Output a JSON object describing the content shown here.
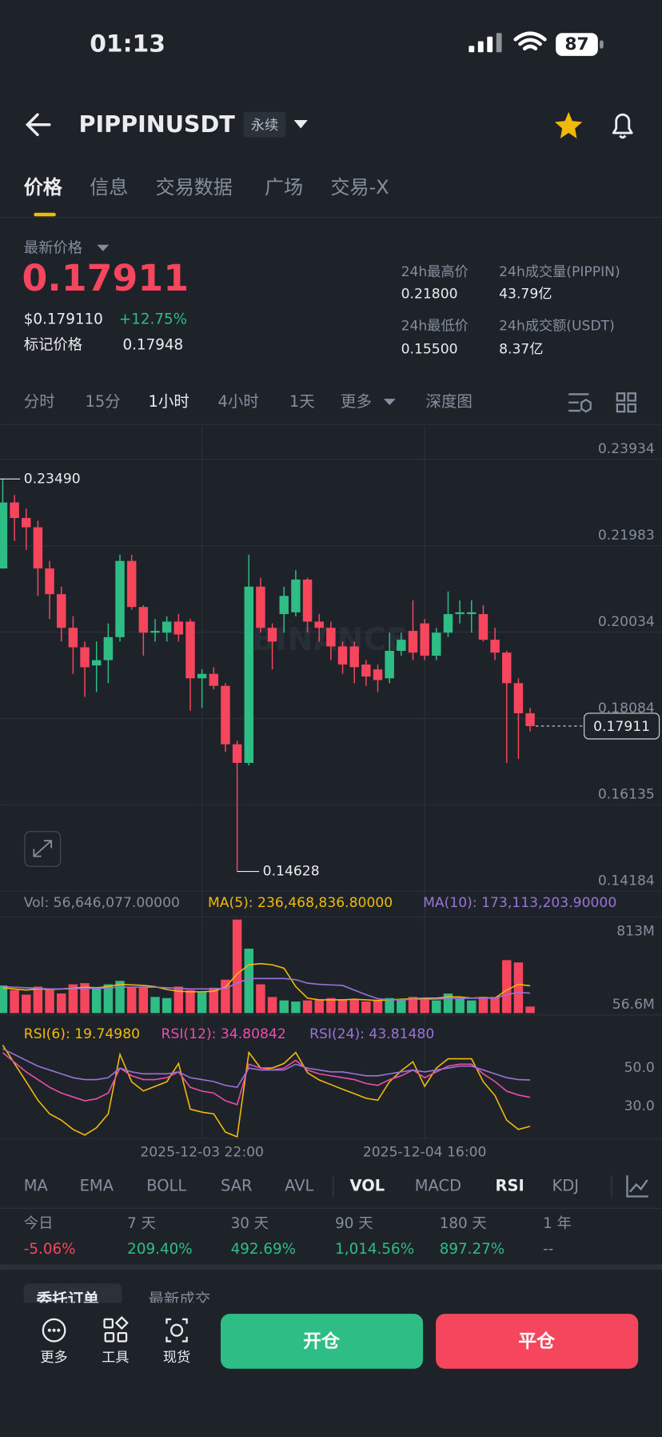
{
  "status_bar": {
    "time": "01:13",
    "battery": "87"
  },
  "header": {
    "symbol": "PIPPINUSDT",
    "contract_type": "永续"
  },
  "tabs": [
    "价格",
    "信息",
    "交易数据",
    "广场",
    "交易-X"
  ],
  "price_info": {
    "latest_label": "最新价格",
    "last_price": "0.17911",
    "usd_price": "$0.179110",
    "change": "+12.75%",
    "mark_label": "标记价格",
    "mark_price": "0.17948",
    "stats": [
      {
        "label": "24h最高价",
        "value": "0.21800"
      },
      {
        "label": "24h成交量(PIPPIN)",
        "value": "43.79亿"
      },
      {
        "label": "24h最低价",
        "value": "0.15500"
      },
      {
        "label": "24h成交额(USDT)",
        "value": "8.37亿"
      }
    ]
  },
  "timeframes": [
    "分时",
    "15分",
    "1小时",
    "4小时",
    "1天",
    "更多",
    "深度图"
  ],
  "chart_data": {
    "type": "candlestick",
    "x": [
      null,
      null,
      null,
      null,
      null,
      null,
      null,
      null,
      null,
      null,
      null,
      null,
      null,
      null,
      null,
      null,
      null,
      "2025-12-03 22:00",
      null,
      null,
      null,
      null,
      null,
      null,
      null,
      null,
      null,
      null,
      null,
      null,
      null,
      null,
      null,
      null,
      null,
      null,
      "2025-12-04 16:00",
      null,
      null,
      null,
      null,
      null,
      null,
      null,
      null,
      null
    ],
    "open": [
      0.2147,
      0.2296,
      0.2261,
      0.224,
      0.2147,
      0.2089,
      0.2013,
      0.1969,
      0.1928,
      0.194,
      0.1992,
      0.2164,
      0.206,
      0.2002,
      0.2002,
      0.2027,
      0.2027,
      0.1899,
      0.1909,
      0.1882,
      0.175,
      0.1708,
      0.2106,
      0.2013,
      0.2044,
      0.2048,
      0.2122,
      0.2027,
      0.2013,
      0.1971,
      0.1971,
      0.193,
      0.1919,
      0.1899,
      0.1961,
      0.2006,
      0.2023,
      0.195,
      0.2002,
      0.2044,
      0.2044,
      0.2044,
      0.1986,
      0.1957,
      0.1888,
      0.182
    ],
    "high": [
      0.2349,
      0.2313,
      0.2282,
      0.2255,
      0.2164,
      0.2106,
      0.2039,
      0.1982,
      0.1982,
      0.2023,
      0.2178,
      0.2178,
      0.2064,
      0.2033,
      0.2039,
      0.2044,
      0.2033,
      0.1919,
      0.1924,
      0.1888,
      0.1758,
      0.2178,
      0.2126,
      0.2023,
      0.2106,
      0.2143,
      0.2126,
      0.2044,
      0.2027,
      0.1982,
      0.1982,
      0.194,
      0.193,
      0.2002,
      0.2002,
      0.2075,
      0.2033,
      0.2013,
      0.2095,
      0.2075,
      0.2075,
      0.2064,
      0.2013,
      0.1961,
      0.1899,
      0.1832
    ],
    "low": [
      0.2147,
      0.2209,
      0.2189,
      0.2085,
      0.2033,
      0.1982,
      0.1909,
      0.1857,
      0.1868,
      0.1888,
      0.1982,
      0.2054,
      0.195,
      0.1982,
      0.1982,
      0.1982,
      0.1826,
      0.1832,
      0.1874,
      0.1733,
      0.14628,
      0.1702,
      0.2002,
      0.1919,
      0.2002,
      0.2039,
      0.2002,
      0.1982,
      0.194,
      0.1909,
      0.1888,
      0.1882,
      0.1868,
      0.1888,
      0.195,
      0.194,
      0.194,
      0.194,
      0.1992,
      0.2023,
      0.2002,
      0.1982,
      0.194,
      0.1708,
      0.1717,
      0.1779
    ],
    "close": [
      0.2296,
      0.2261,
      0.224,
      0.2147,
      0.2089,
      0.2013,
      0.1969,
      0.1924,
      0.194,
      0.1992,
      0.2164,
      0.206,
      0.2002,
      0.2006,
      0.2027,
      0.1998,
      0.1899,
      0.1909,
      0.1882,
      0.175,
      0.1708,
      0.2106,
      0.2013,
      0.1982,
      0.2085,
      0.2122,
      0.2027,
      0.2013,
      0.1971,
      0.193,
      0.1924,
      0.1903,
      0.1895,
      0.1961,
      0.1986,
      0.1957,
      0.195,
      0.2002,
      0.2044,
      0.2048,
      0.2048,
      0.1986,
      0.1957,
      0.1888,
      0.182,
      0.17911
    ],
    "up_color": "#2ebd85",
    "down_color": "#f6465d",
    "ylim": [
      0.14184,
      0.2468
    ],
    "yticks": [
      0.23934,
      0.21983,
      0.20034,
      0.18084,
      0.16135,
      0.14184
    ],
    "grid": true,
    "high_label": "0.23490",
    "low_label": "0.14628",
    "watermark": "BINANCE",
    "volume": {
      "legend": "Vol: 56,646,077.00000",
      "values": [
        240000000,
        200000000,
        160000000,
        230000000,
        200000000,
        170000000,
        250000000,
        260000000,
        220000000,
        250000000,
        280000000,
        230000000,
        230000000,
        140000000,
        130000000,
        230000000,
        200000000,
        180000000,
        220000000,
        290000000,
        813000000,
        560000000,
        250000000,
        140000000,
        110000000,
        100000000,
        110000000,
        120000000,
        130000000,
        120000000,
        120000000,
        100000000,
        110000000,
        130000000,
        120000000,
        140000000,
        130000000,
        110000000,
        170000000,
        130000000,
        110000000,
        140000000,
        140000000,
        460000000,
        440000000,
        56646077
      ],
      "series": [
        {
          "legend": "MA(5): 236,468,836.80000",
          "color": "#f0b90b",
          "values": [
            220000000,
            210000000,
            200000000,
            210000000,
            205000000,
            210000000,
            215000000,
            225000000,
            220000000,
            230000000,
            250000000,
            245000000,
            240000000,
            230000000,
            205000000,
            190000000,
            185000000,
            185000000,
            190000000,
            225000000,
            340000000,
            420000000,
            430000000,
            420000000,
            390000000,
            230000000,
            130000000,
            115000000,
            115000000,
            115000000,
            120000000,
            115000000,
            110000000,
            115000000,
            120000000,
            125000000,
            130000000,
            130000000,
            140000000,
            140000000,
            130000000,
            135000000,
            130000000,
            200000000,
            250000000,
            236468836.8
          ]
        },
        {
          "legend": "MA(10): 173,113,203.90000",
          "color": "#9b72d8",
          "values": [
            230000000,
            225000000,
            220000000,
            215000000,
            210000000,
            210000000,
            212000000,
            215000000,
            215000000,
            218000000,
            225000000,
            225000000,
            225000000,
            225000000,
            220000000,
            215000000,
            210000000,
            210000000,
            210000000,
            215000000,
            260000000,
            300000000,
            300000000,
            300000000,
            300000000,
            290000000,
            260000000,
            250000000,
            245000000,
            240000000,
            200000000,
            160000000,
            125000000,
            115000000,
            115000000,
            120000000,
            120000000,
            122000000,
            125000000,
            128000000,
            130000000,
            130000000,
            130000000,
            160000000,
            180000000,
            173113203.9
          ]
        }
      ],
      "ylim": [
        0,
        813000000
      ],
      "yticks": [
        {
          "value": 813000000,
          "label": "813M"
        },
        {
          "value": 56646077,
          "label": "56.6M"
        }
      ]
    },
    "rsi": {
      "series": [
        {
          "legend": "RSI(6): 19.74980",
          "color": "#f0b90b",
          "values": [
            61.9,
            52.4,
            42.9,
            33.3,
            26.2,
            22.9,
            18.1,
            15.2,
            19.0,
            26.2,
            57.1,
            42.9,
            38.1,
            40.5,
            42.9,
            52.4,
            28.6,
            27.1,
            26.2,
            16.7,
            14.3,
            58.1,
            50,
            50,
            52.4,
            58.1,
            47.6,
            43.8,
            41.4,
            39.0,
            36.7,
            34.3,
            33.3,
            42.9,
            48.6,
            53.3,
            40.5,
            50,
            54.8,
            54.8,
            54.8,
            42.9,
            35.7,
            22.9,
            18.1,
            19.7498
          ]
        },
        {
          "legend": "RSI(12): 34.80842",
          "color": "#e94fa9",
          "values": [
            58,
            53,
            48,
            44,
            40,
            37,
            35,
            33,
            34,
            37,
            50,
            46,
            44,
            44,
            45,
            48,
            40,
            38,
            37,
            33,
            31,
            52,
            50,
            49,
            50,
            54,
            49,
            47,
            46,
            45,
            44,
            42,
            41,
            44,
            46,
            49,
            45,
            48,
            51,
            52,
            52,
            47,
            43,
            38,
            36,
            34.80842
          ]
        },
        {
          "legend": "RSI(24): 43.81480",
          "color": "#9b72d8",
          "values": [
            60,
            57,
            54,
            51,
            49,
            47,
            45,
            44,
            44,
            45,
            50,
            48,
            47,
            47,
            47,
            48,
            45,
            44,
            43,
            41,
            40,
            50,
            49,
            49,
            49,
            52,
            50,
            49,
            48,
            48,
            47,
            46,
            46,
            47,
            48,
            49,
            48,
            49,
            50,
            51,
            51,
            49,
            47,
            45,
            44,
            43.8148
          ]
        }
      ],
      "ylim": [
        13.3,
        76.2
      ],
      "yticks": [
        {
          "value": 50,
          "label": "50.0"
        },
        {
          "value": 30,
          "label": "30.0"
        }
      ]
    }
  },
  "indicators": [
    "MA",
    "EMA",
    "BOLL",
    "SAR",
    "AVL",
    "VOL",
    "MACD",
    "RSI",
    "KDJ"
  ],
  "performance": [
    {
      "period": "今日",
      "change": "-5.06%",
      "color": "#f6465d"
    },
    {
      "period": "7 天",
      "change": "209.40%",
      "color": "#2ebd85"
    },
    {
      "period": "30 天",
      "change": "492.69%",
      "color": "#2ebd85"
    },
    {
      "period": "90 天",
      "change": "1,014.56%",
      "color": "#2ebd85"
    },
    {
      "period": "180 天",
      "change": "897.27%",
      "color": "#2ebd85"
    },
    {
      "period": "1 年",
      "change": "--",
      "color": "#848e9c"
    }
  ],
  "order_tabs": [
    "委托订单",
    "最新成交"
  ],
  "bottom_bar": {
    "more": "更多",
    "tools": "工具",
    "spot": "现货",
    "open": "开仓",
    "close": "平仓"
  }
}
